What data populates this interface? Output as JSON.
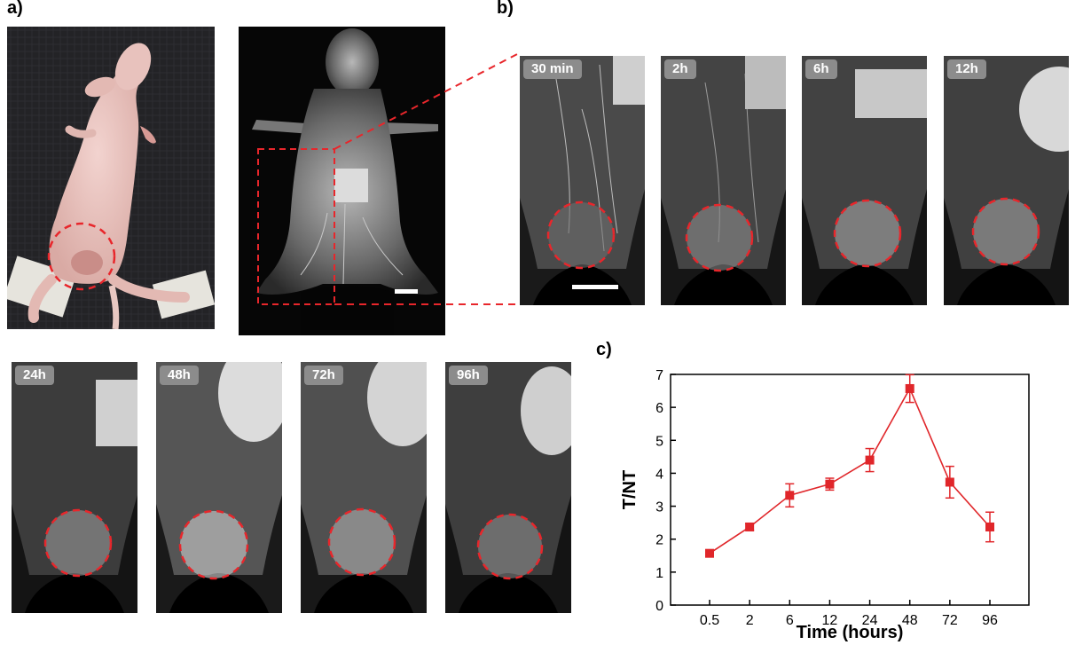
{
  "panels": {
    "a_label": "a)",
    "b_label": "b)",
    "c_label": "c)"
  },
  "timepoints": [
    "30 min",
    "2h",
    "6h",
    "12h",
    "24h",
    "48h",
    "72h",
    "96h"
  ],
  "colors": {
    "tumor_circle": "#e8262b",
    "series": "#e0262a",
    "tag_bg": "#8c8c8c"
  },
  "chart_data": {
    "type": "line",
    "title": "",
    "xlabel": "Time (hours)",
    "ylabel": "T/NT",
    "categories": [
      "0.5",
      "2",
      "6",
      "12",
      "24",
      "48",
      "72",
      "96"
    ],
    "series": [
      {
        "values": [
          1.57,
          2.37,
          3.33,
          3.67,
          4.4,
          6.57,
          3.73,
          2.37
        ],
        "errors": [
          0.08,
          0.1,
          0.35,
          0.18,
          0.35,
          0.42,
          0.48,
          0.45
        ]
      }
    ],
    "ylim": [
      0,
      7
    ],
    "yticks": [
      0,
      1,
      2,
      3,
      4,
      5,
      6,
      7
    ],
    "grid": false,
    "marker": "square"
  }
}
